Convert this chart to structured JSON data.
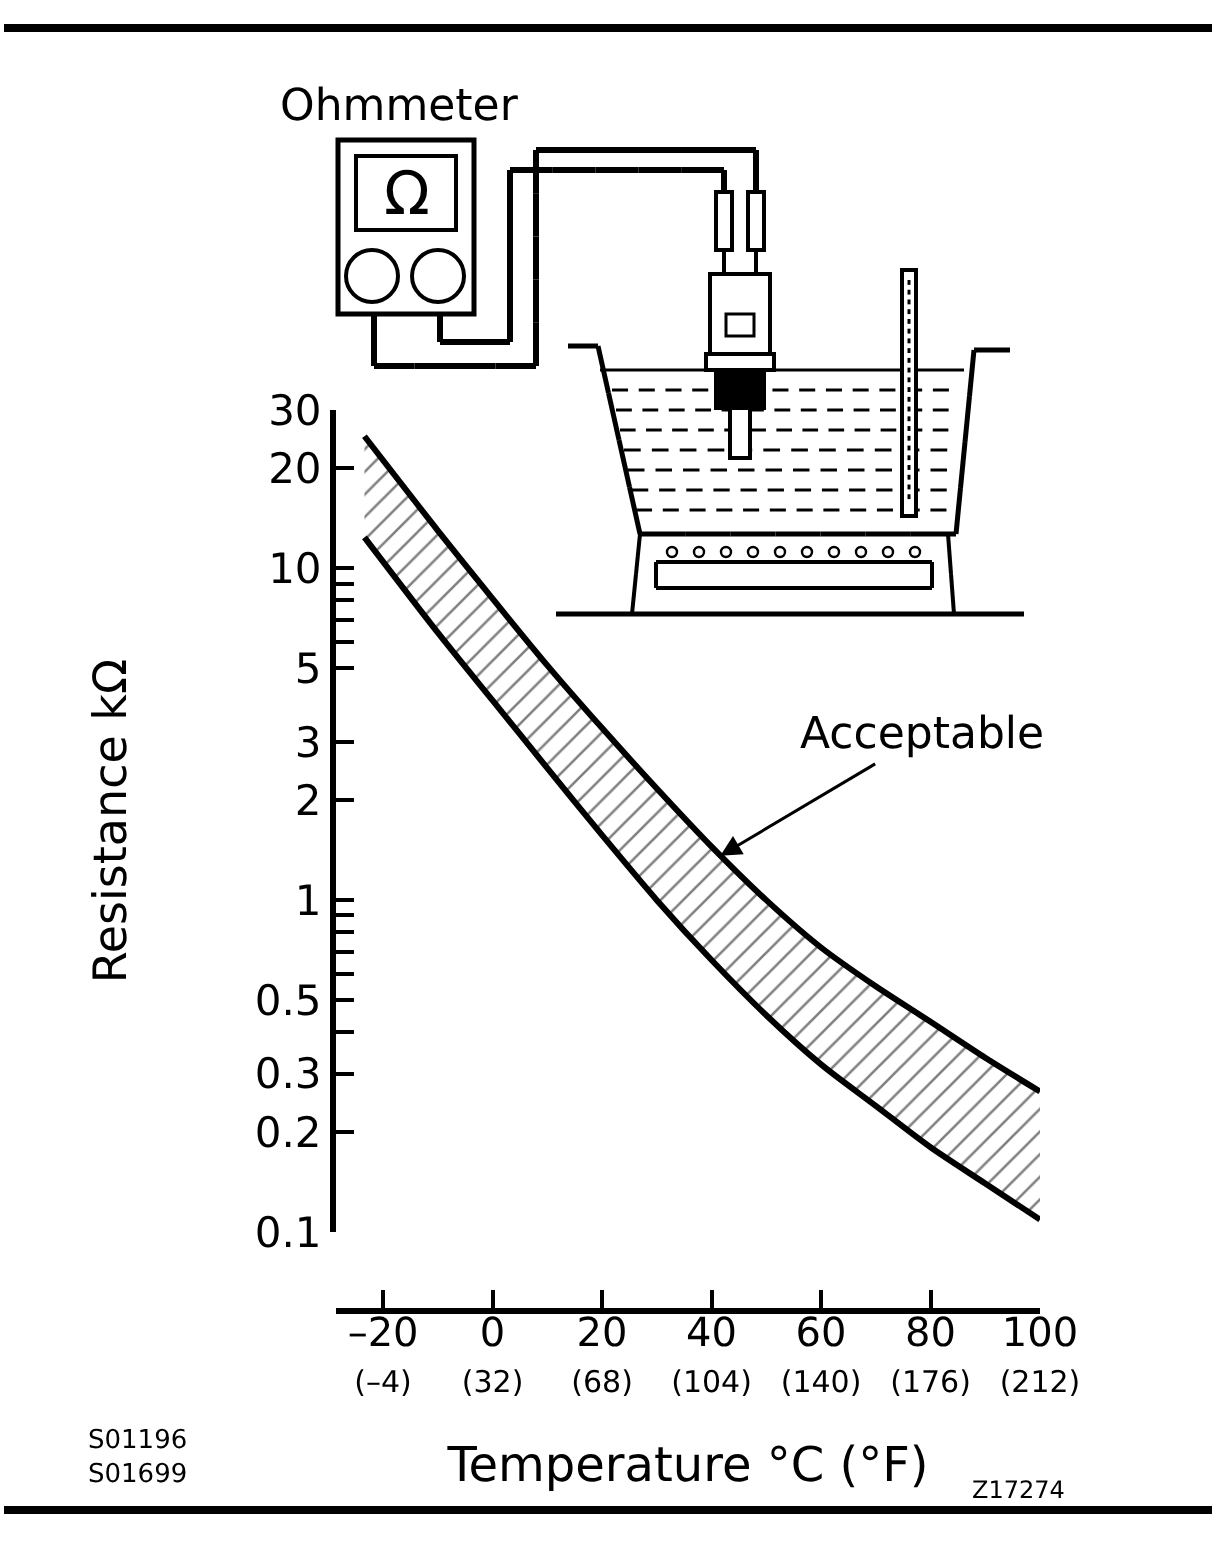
{
  "chart_data": {
    "type": "line",
    "xlabel": "Temperature °C (°F)",
    "ylabel": "Resistance kΩ",
    "x": [
      -23.4,
      -10,
      0,
      10,
      20,
      30,
      40,
      50,
      60,
      70,
      80,
      90,
      100
    ],
    "series": [
      {
        "color": "#000000",
        "values": [
          25,
          13,
          8.1,
          5.1,
          3.3,
          2.17,
          1.45,
          1.0,
          0.72,
          0.55,
          0.43,
          0.335,
          0.265
        ],
        "upper": [
          25,
          13,
          8.1,
          5.1,
          3.3,
          2.17,
          1.45,
          1.0,
          0.72,
          0.55,
          0.43,
          0.335,
          0.265
        ],
        "lower": [
          12.4,
          6.4,
          4.0,
          2.5,
          1.57,
          1.0,
          0.66,
          0.45,
          0.32,
          0.24,
          0.18,
          0.14,
          0.109
        ]
      },
      {
        "color": "#000000",
        "values": [
          12.4,
          6.4,
          4.0,
          2.5,
          1.57,
          1.0,
          0.66,
          0.45,
          0.32,
          0.24,
          0.18,
          0.14,
          0.109
        ]
      }
    ],
    "log": "y",
    "xlim": [
      -28.6,
      100
    ],
    "xticks": [
      {
        "value": -20,
        "label": "–20"
      },
      0,
      20,
      40,
      60,
      80,
      100
    ],
    "x2lim": [
      -19.48,
      212
    ],
    "x2ticks": [
      {
        "value": -4,
        "label": "(–4)"
      },
      {
        "value": 32,
        "label": "(32)"
      },
      {
        "value": 68,
        "label": "(68)"
      },
      {
        "value": 104,
        "label": "(104)"
      },
      {
        "value": 140,
        "label": "(140)"
      },
      {
        "value": 176,
        "label": "(176)"
      },
      {
        "value": 212,
        "label": "(212)"
      }
    ],
    "ylim": [
      0.1,
      30
    ],
    "yticks": [
      30,
      20,
      10,
      {
        "value": 9,
        "label": null
      },
      {
        "value": 8,
        "label": null
      },
      {
        "value": 7,
        "label": null
      },
      {
        "value": 6,
        "label": null
      },
      5,
      3,
      2,
      1,
      {
        "value": 0.9,
        "label": null
      },
      {
        "value": 0.8,
        "label": null
      },
      {
        "value": 0.7,
        "label": null
      },
      {
        "value": 0.6,
        "label": null
      },
      0.5,
      {
        "value": 0.4,
        "label": null
      },
      0.3,
      0.2,
      0.1
    ],
    "annotations": [
      {
        "text": "Acceptable",
        "x": 41.6,
        "y": 1.36
      },
      "Ohmmeter",
      "Ω",
      "S01196\nS01699",
      "Z17274"
    ]
  }
}
